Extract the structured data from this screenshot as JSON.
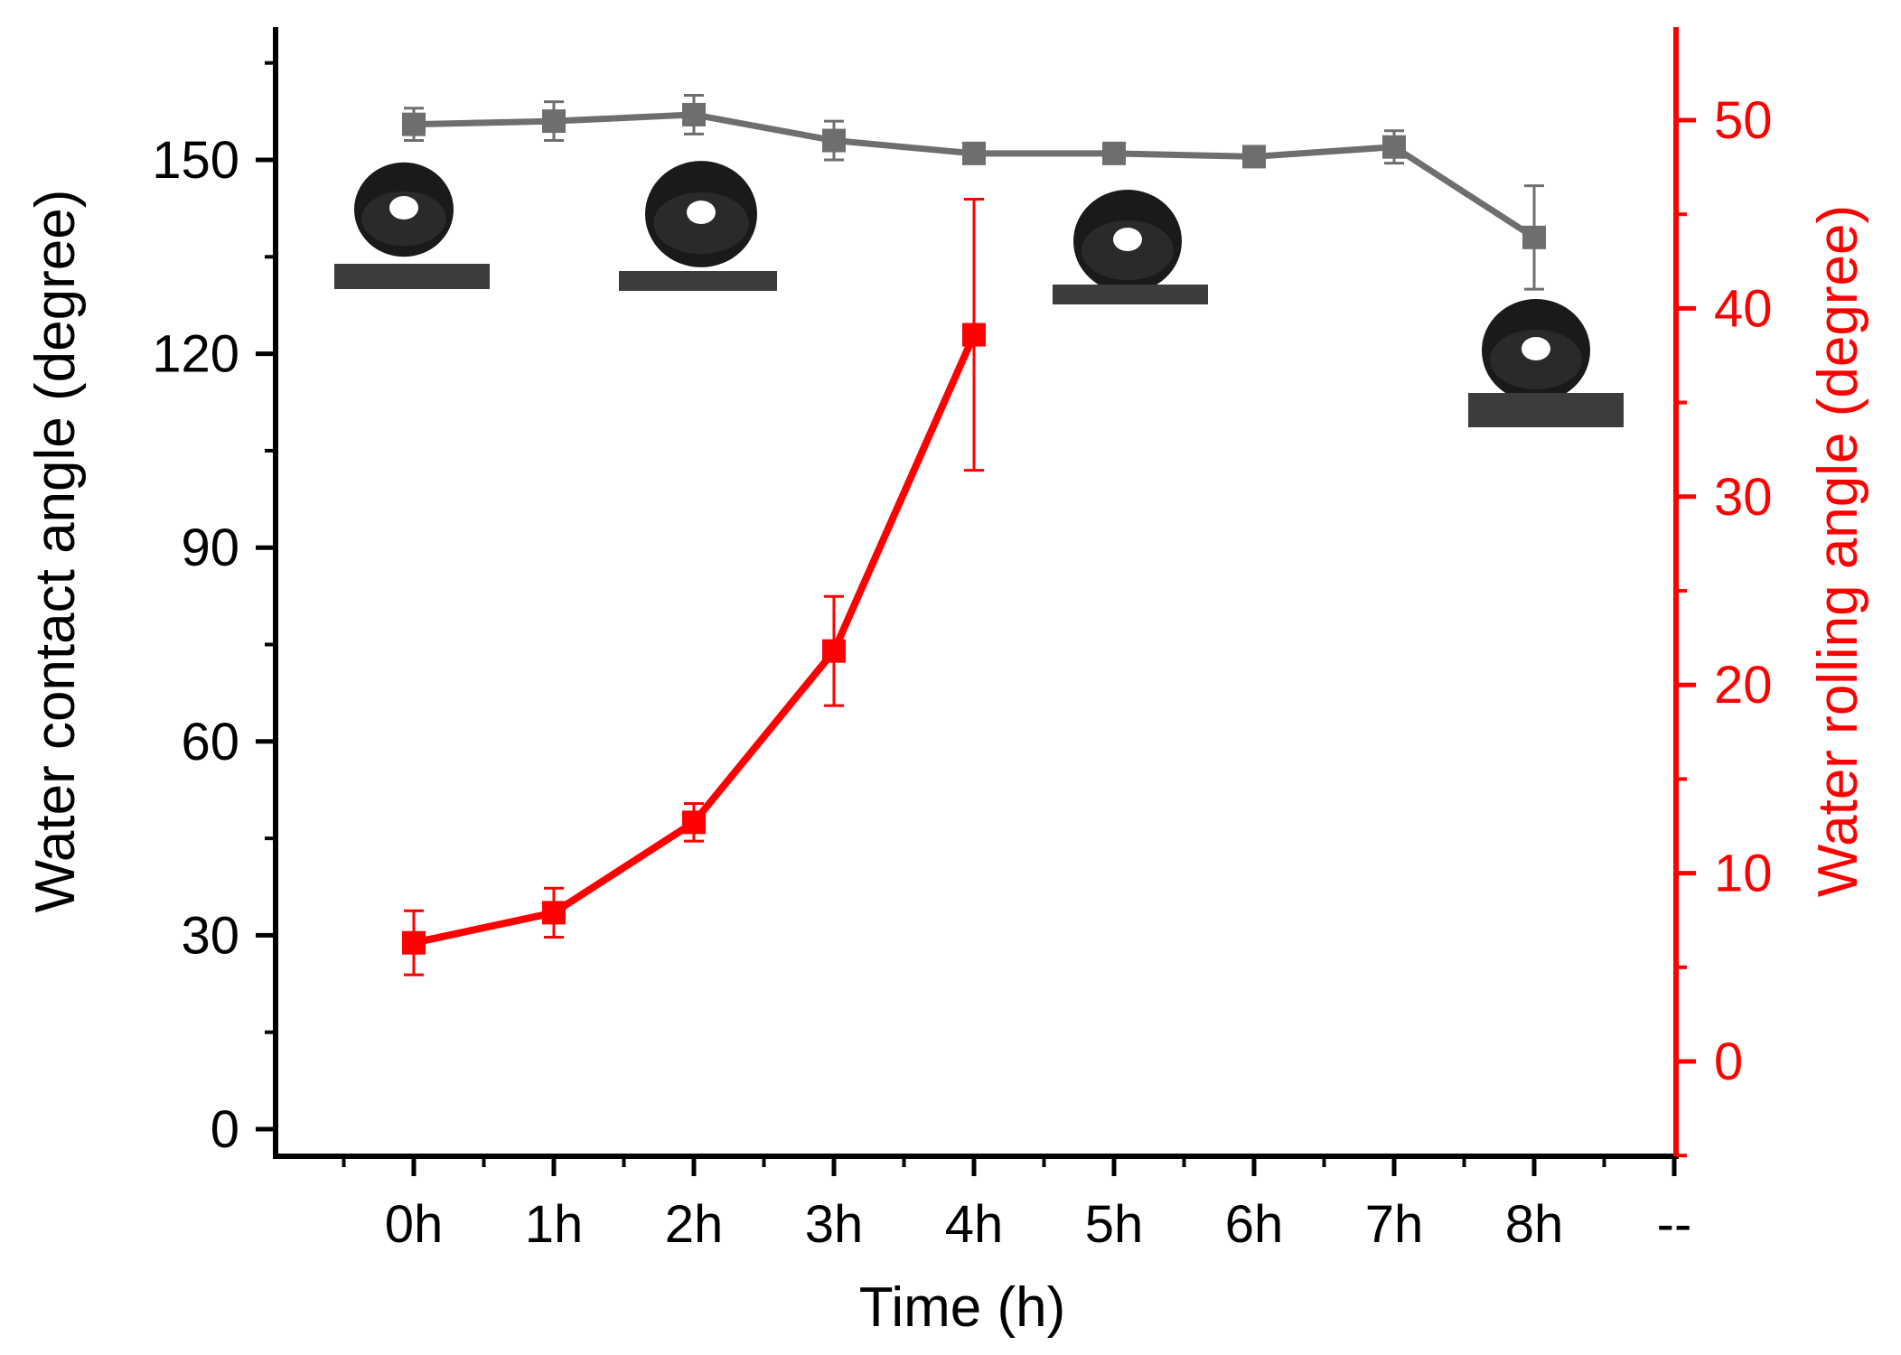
{
  "chart_data": {
    "type": "line",
    "xlabel": "Time (h)",
    "ylabel_left": "Water contact angle  (degree)",
    "ylabel_right": "Water rolling angle (degree)",
    "x_tick_labels": [
      "0h",
      "1h",
      "2h",
      "3h",
      "4h",
      "5h",
      "6h",
      "7h",
      "8h",
      "--"
    ],
    "ylim_left": [
      -4,
      170
    ],
    "ylim_right": [
      -5,
      55
    ],
    "yticks_left": [
      0,
      30,
      60,
      90,
      120,
      150
    ],
    "yticks_right": [
      0,
      10,
      20,
      30,
      40,
      50
    ],
    "grid": false,
    "series": [
      {
        "axis": "left",
        "color": "#6e6e6e",
        "marker": "square",
        "x": [
          0,
          1,
          2,
          3,
          4,
          5,
          6,
          7,
          8
        ],
        "values": [
          155.5,
          156,
          157,
          153,
          151,
          151,
          150.5,
          152,
          138
        ],
        "errors": [
          2.5,
          3,
          3,
          3,
          1.5,
          1.5,
          1.5,
          2.5,
          8
        ]
      },
      {
        "axis": "right",
        "color": "#ff0000",
        "marker": "square",
        "x": [
          0,
          1,
          2,
          3,
          4
        ],
        "values": [
          6.3,
          7.9,
          12.7,
          21.8,
          38.6
        ],
        "errors": [
          1.7,
          1.3,
          1.0,
          2.9,
          7.2
        ]
      }
    ],
    "insets": [
      {
        "kind": "water-droplet-photo",
        "near_x": 0
      },
      {
        "kind": "water-droplet-photo",
        "near_x": 2
      },
      {
        "kind": "water-droplet-photo",
        "near_x": 5
      },
      {
        "kind": "water-droplet-photo",
        "near_x": 8
      }
    ]
  }
}
